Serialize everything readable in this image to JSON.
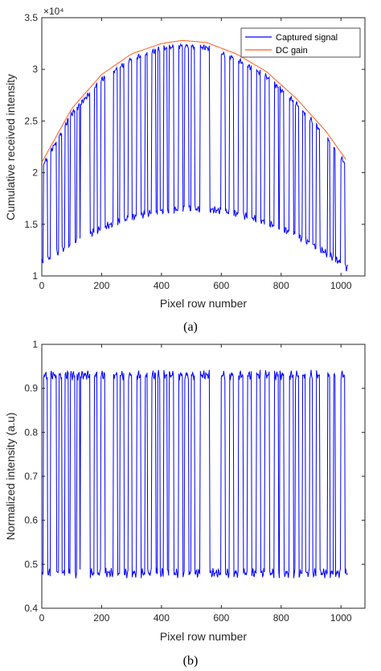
{
  "chart_data": [
    {
      "type": "line",
      "caption": "(a)",
      "xlabel": "Pixel row number",
      "ylabel": "Cumulative received intensity",
      "y_multiplier_label": "×10⁴",
      "xlim": [
        0,
        1080
      ],
      "ylim": [
        1.0,
        3.5
      ],
      "xticks": [
        0,
        200,
        400,
        600,
        800,
        1000
      ],
      "yticks": [
        1,
        1.5,
        2,
        2.5,
        3,
        3.5
      ],
      "ytick_labels": [
        "1",
        "1.5",
        "2",
        "2.5",
        "3",
        "3.5"
      ],
      "grid": false,
      "legend": "top-right",
      "series": [
        {
          "name": "Captured signal",
          "color": "#0000ff",
          "generator": "captured",
          "low_min": 1.08,
          "low_max": 1.65
        },
        {
          "name": "DC gain",
          "color": "#ff5a1f",
          "generator": "dc"
        }
      ],
      "dc_gain": {
        "x": [
          0,
          100,
          200,
          300,
          400,
          470,
          550,
          650,
          750,
          850,
          950,
          1023
        ],
        "y": [
          2.1,
          2.62,
          2.95,
          3.15,
          3.25,
          3.28,
          3.26,
          3.15,
          2.98,
          2.72,
          2.4,
          2.1
        ]
      },
      "high_bands": [
        [
          5,
          18
        ],
        [
          30,
          48
        ],
        [
          58,
          66
        ],
        [
          78,
          88
        ],
        [
          95,
          110
        ],
        [
          118,
          126
        ],
        [
          130,
          160
        ],
        [
          175,
          185
        ],
        [
          198,
          210
        ],
        [
          240,
          252
        ],
        [
          262,
          275
        ],
        [
          290,
          300
        ],
        [
          318,
          330
        ],
        [
          345,
          352
        ],
        [
          368,
          380
        ],
        [
          388,
          395
        ],
        [
          408,
          418
        ],
        [
          425,
          440
        ],
        [
          458,
          470
        ],
        [
          478,
          490
        ],
        [
          500,
          510
        ],
        [
          530,
          560
        ],
        [
          600,
          612
        ],
        [
          628,
          640
        ],
        [
          658,
          672
        ],
        [
          688,
          700
        ],
        [
          718,
          730
        ],
        [
          745,
          760
        ],
        [
          778,
          790
        ],
        [
          795,
          808
        ],
        [
          828,
          840
        ],
        [
          848,
          858
        ],
        [
          872,
          880
        ],
        [
          895,
          905
        ],
        [
          918,
          928
        ],
        [
          955,
          962
        ],
        [
          975,
          980
        ],
        [
          1000,
          1012
        ]
      ]
    },
    {
      "type": "line",
      "caption": "(b)",
      "xlabel": "Pixel row number",
      "ylabel": "Normalized intensity (a.u)",
      "xlim": [
        0,
        1080
      ],
      "ylim": [
        0.4,
        1.0
      ],
      "xticks": [
        0,
        200,
        400,
        600,
        800,
        1000
      ],
      "yticks": [
        0.4,
        0.5,
        0.6,
        0.7,
        0.8,
        0.9,
        1
      ],
      "ytick_labels": [
        "0.4",
        "0.5",
        "0.6",
        "0.7",
        "0.8",
        "0.9",
        "1"
      ],
      "grid": false,
      "series": [
        {
          "color": "#0000ff",
          "generator": "normalized",
          "low": 0.48,
          "high": 0.93
        }
      ],
      "high_bands": [
        [
          5,
          18
        ],
        [
          30,
          48
        ],
        [
          58,
          66
        ],
        [
          78,
          88
        ],
        [
          95,
          110
        ],
        [
          118,
          126
        ],
        [
          130,
          160
        ],
        [
          175,
          185
        ],
        [
          198,
          210
        ],
        [
          240,
          252
        ],
        [
          262,
          275
        ],
        [
          290,
          300
        ],
        [
          318,
          330
        ],
        [
          345,
          352
        ],
        [
          368,
          380
        ],
        [
          388,
          395
        ],
        [
          408,
          418
        ],
        [
          425,
          440
        ],
        [
          458,
          470
        ],
        [
          478,
          490
        ],
        [
          500,
          510
        ],
        [
          530,
          560
        ],
        [
          600,
          612
        ],
        [
          628,
          640
        ],
        [
          658,
          672
        ],
        [
          688,
          700
        ],
        [
          718,
          730
        ],
        [
          745,
          760
        ],
        [
          778,
          790
        ],
        [
          795,
          808
        ],
        [
          828,
          840
        ],
        [
          848,
          858
        ],
        [
          872,
          880
        ],
        [
          895,
          905
        ],
        [
          918,
          928
        ],
        [
          955,
          962
        ],
        [
          975,
          980
        ],
        [
          1000,
          1012
        ]
      ]
    }
  ]
}
